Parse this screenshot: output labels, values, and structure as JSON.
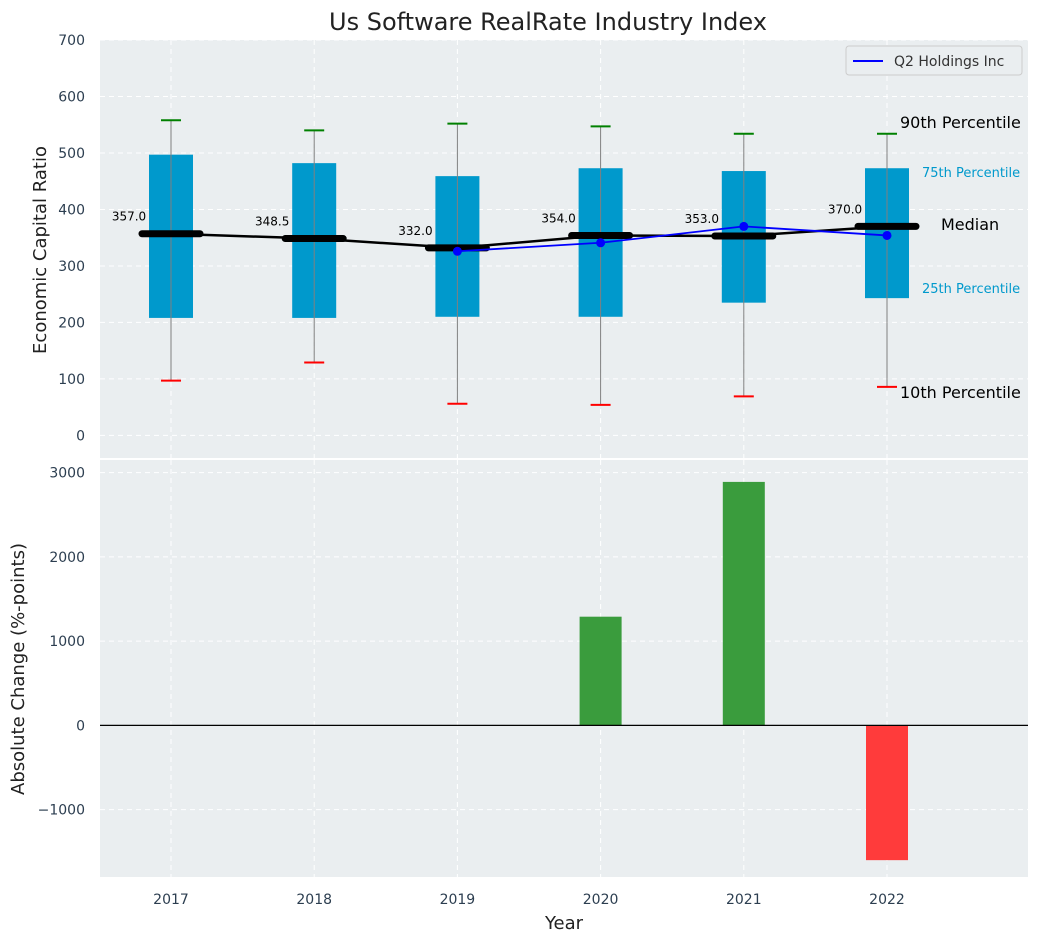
{
  "chart_data": [
    {
      "type": "box",
      "title": "Us Software RealRate Industry Index",
      "xlabel": "",
      "ylabel": "Economic Capital Ratio",
      "ylim": [
        -40,
        700
      ],
      "yticks": [
        0,
        100,
        200,
        300,
        400,
        500,
        600,
        700
      ],
      "grid": true,
      "legend_position": "top-right",
      "categories": [
        "2017",
        "2018",
        "2019",
        "2020",
        "2021",
        "2022"
      ],
      "p10": [
        97,
        129,
        56,
        54,
        69,
        86
      ],
      "p25": [
        208,
        208,
        210,
        210,
        235,
        243
      ],
      "median": [
        357.0,
        348.5,
        332.0,
        354.0,
        353.0,
        370.0
      ],
      "median_labels": [
        "357.0",
        "348.5",
        "332.0",
        "354.0",
        "353.0",
        "370.0"
      ],
      "p75": [
        497,
        482,
        459,
        473,
        468,
        473
      ],
      "p90": [
        558,
        540,
        552,
        547,
        534,
        534
      ],
      "series": [
        {
          "name": "Q2 Holdings Inc",
          "x": [
            "2019",
            "2020",
            "2021",
            "2022"
          ],
          "values": [
            326,
            341,
            370,
            354
          ],
          "color": "#0000ff"
        }
      ],
      "annotations": {
        "p90": "90th Percentile",
        "p75": "75th Percentile",
        "median": "Median",
        "p25": "25th Percentile",
        "p10": "10th Percentile"
      },
      "colors": {
        "box": "#0099cc",
        "median_line": "#000000",
        "p90_cap": "#008000",
        "p10_cap": "#ff0000",
        "whisker": "#808080",
        "background": "#eaeef0"
      }
    },
    {
      "type": "bar",
      "xlabel": "Year",
      "ylabel": "Absolute Change (%-points)",
      "ylim": [
        -1800,
        3150
      ],
      "yticks": [
        -1000,
        0,
        1000,
        2000,
        3000
      ],
      "ytick_labels": [
        "−1000",
        "0",
        "1000",
        "2000",
        "3000"
      ],
      "grid": true,
      "categories": [
        "2017",
        "2018",
        "2019",
        "2020",
        "2021",
        "2022"
      ],
      "values": [
        0,
        0,
        0,
        1290,
        2890,
        -1600
      ],
      "colors": {
        "positive": "#3a9c3d",
        "negative": "#ff3b3b",
        "zero_line": "#000000"
      }
    }
  ]
}
